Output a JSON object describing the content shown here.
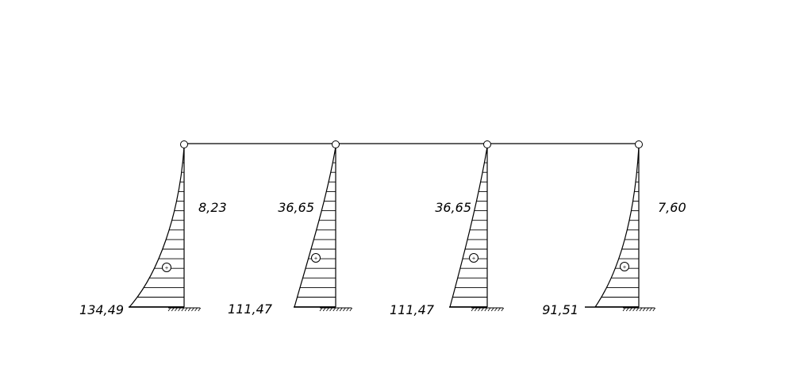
{
  "diagram": {
    "stroke_color": "#000000",
    "background": "#ffffff",
    "sign_marker": "+",
    "columns": [
      {
        "name": "column-1",
        "top_value": "8,23",
        "base_value": "134,49"
      },
      {
        "name": "column-2",
        "top_value": "36,65",
        "base_value": "111,47"
      },
      {
        "name": "column-3",
        "top_value": "36,65",
        "base_value": "111,47"
      },
      {
        "name": "column-4",
        "top_value": "7,60",
        "base_value": "91,51"
      }
    ]
  }
}
